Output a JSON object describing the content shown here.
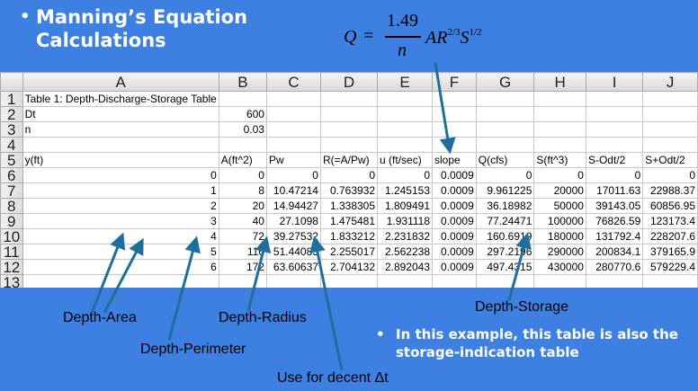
{
  "title": {
    "bullet": "•",
    "line1": "Manning’s Equation",
    "line2": "Calculations"
  },
  "formula": {
    "Q": "Q",
    "equals": "=",
    "numerator": "1.49",
    "denominator": "n",
    "rest_base": "AR",
    "exp1": "2/3",
    "S": "S",
    "exp2": "1/2"
  },
  "sheet": {
    "columns": [
      "",
      "A",
      "B",
      "C",
      "D",
      "E",
      "F",
      "G",
      "H",
      "I",
      "J"
    ],
    "rows": [
      {
        "n": "1",
        "cells": [
          "Table 1: Depth-Discharge-Storage Table",
          "",
          "",
          "",
          "",
          "",
          "",
          "",
          "",
          ""
        ]
      },
      {
        "n": "2",
        "cells": [
          "Dt",
          "600",
          "",
          "",
          "",
          "",
          "",
          "",
          "",
          ""
        ]
      },
      {
        "n": "3",
        "cells": [
          "n",
          "0.03",
          "",
          "",
          "",
          "",
          "",
          "",
          "",
          ""
        ]
      },
      {
        "n": "4",
        "cells": [
          "",
          "",
          "",
          "",
          "",
          "",
          "",
          "",
          "",
          ""
        ]
      },
      {
        "n": "5",
        "cells": [
          "y(ft)",
          "A(ft^2)",
          "Pw",
          "R(=A/Pw)",
          "u (ft/sec)",
          "slope",
          "Q(cfs)",
          "S(ft^3)",
          "S-Odt/2",
          "S+Odt/2"
        ]
      },
      {
        "n": "6",
        "cells": [
          "0",
          "0",
          "0",
          "0",
          "0",
          "0.0009",
          "0",
          "0",
          "0",
          "0"
        ]
      },
      {
        "n": "7",
        "cells": [
          "1",
          "8",
          "10.47214",
          "0.763932",
          "1.245153",
          "0.0009",
          "9.961225",
          "20000",
          "17011.63",
          "22988.37"
        ]
      },
      {
        "n": "8",
        "cells": [
          "2",
          "20",
          "14.94427",
          "1.338305",
          "1.809491",
          "0.0009",
          "36.18982",
          "50000",
          "39143.05",
          "60856.95"
        ]
      },
      {
        "n": "9",
        "cells": [
          "3",
          "40",
          "27.1098",
          "1.475481",
          "1.931118",
          "0.0009",
          "77.24471",
          "100000",
          "76826.59",
          "123173.4"
        ]
      },
      {
        "n": "10",
        "cells": [
          "4",
          "72",
          "39.27532",
          "1.833212",
          "2.231832",
          "0.0009",
          "160.6919",
          "180000",
          "131792.4",
          "228207.6"
        ]
      },
      {
        "n": "11",
        "cells": [
          "5",
          "116",
          "51.44085",
          "2.255017",
          "2.562238",
          "0.0009",
          "297.2196",
          "290000",
          "200834.1",
          "379165.9"
        ]
      },
      {
        "n": "12",
        "cells": [
          "6",
          "172",
          "63.60637",
          "2.704132",
          "2.892043",
          "0.0009",
          "497.4315",
          "430000",
          "280770.6",
          "579229.4"
        ]
      },
      {
        "n": "13",
        "cells": [
          "",
          "",
          "",
          "",
          "",
          "",
          "",
          "",
          "",
          ""
        ]
      }
    ]
  },
  "labels": {
    "depth_area": "Depth-Area",
    "depth_radius": "Depth-Radius",
    "depth_perimeter": "Depth-Perimeter",
    "depth_storage": "Depth-Storage",
    "use_for": "Use for decent Δt"
  },
  "note": {
    "bullet": "•",
    "text": "In this example, this table is also the storage-indication table"
  },
  "colors": {
    "background": "#3e7fe2",
    "arrow": "#1f6f9c",
    "title_text": "#ffffff"
  }
}
